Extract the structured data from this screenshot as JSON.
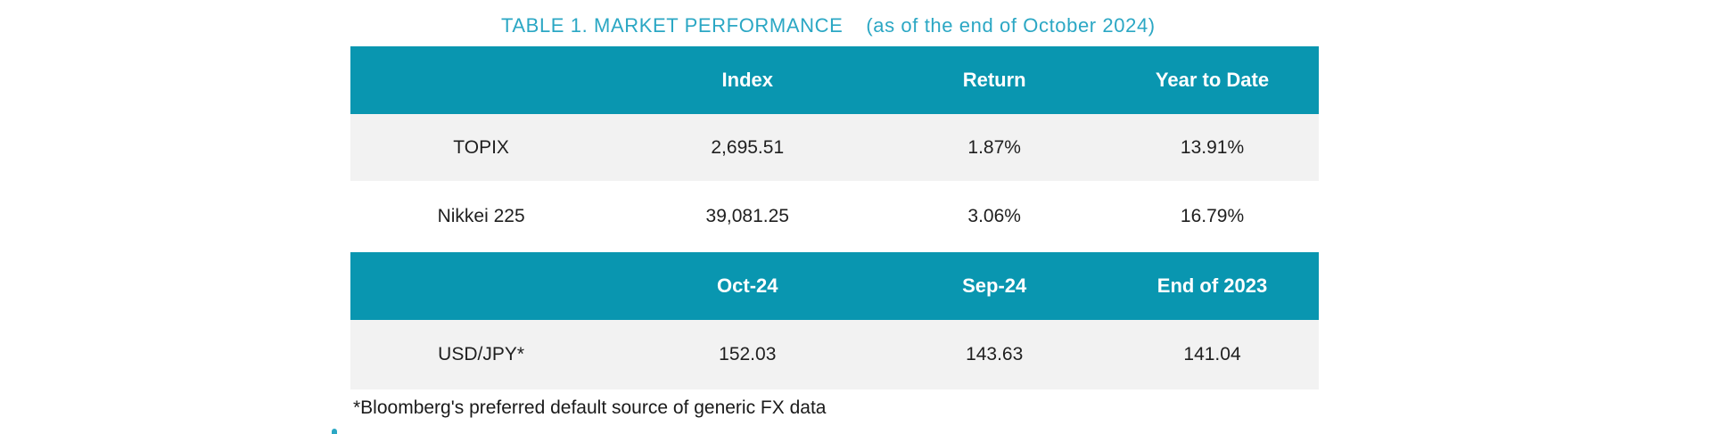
{
  "title": {
    "main": "TABLE 1. MARKET PERFORMANCE",
    "date_note": "(as of the end of October 2024)"
  },
  "market_table": {
    "index_section": {
      "headers": {
        "label": "",
        "col2": "Index",
        "col3": "Return",
        "col4": "Year to Date"
      },
      "rows": [
        {
          "label": "TOPIX",
          "index": "2,695.51",
          "return": "1.87%",
          "ytd": "13.91%"
        },
        {
          "label": "Nikkei 225",
          "index": "39,081.25",
          "return": "3.06%",
          "ytd": "16.79%"
        }
      ]
    },
    "fx_section": {
      "headers": {
        "label": "",
        "col2": "Oct-24",
        "col3": "Sep-24",
        "col4": "End of 2023"
      },
      "rows": [
        {
          "label": "USD/JPY*",
          "oct24": "152.03",
          "sep24": "143.63",
          "end2023": "141.04"
        }
      ]
    }
  },
  "footnote": "*Bloomberg's preferred default source of generic FX data",
  "colors": {
    "header_teal": "#0996B0",
    "title_teal": "#2BA7C4",
    "row_light_gray": "#F2F2F2",
    "body_text": "#1F1F1F",
    "header_text": "#FFFFFF"
  }
}
